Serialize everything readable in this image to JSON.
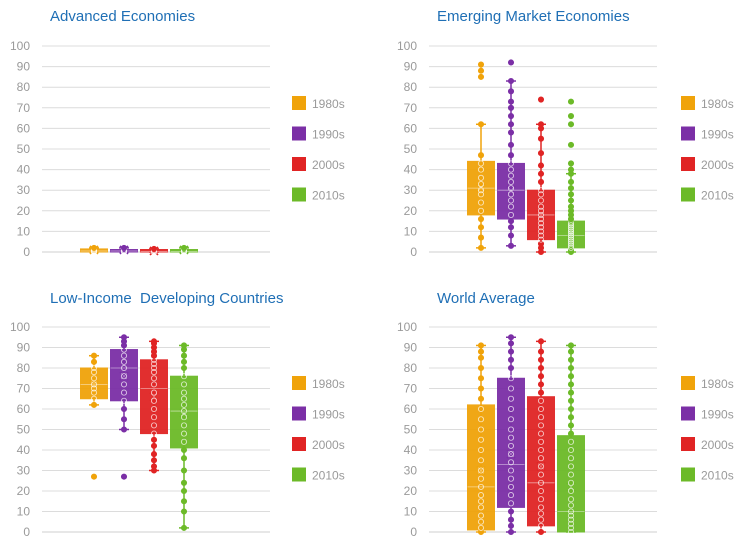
{
  "chart_data": [
    {
      "type": "box",
      "title": "Advanced Economies",
      "ylim": [
        0,
        100
      ],
      "yticks": [
        0,
        10,
        20,
        30,
        40,
        50,
        60,
        70,
        80,
        90,
        100
      ],
      "grid": true,
      "legend_position": "right",
      "series": [
        {
          "name": "1980s",
          "color": "#f0a30a",
          "q1": 0,
          "median": 0.5,
          "q3": 1.5,
          "mean": 1,
          "whisker_low": 0,
          "whisker_high": 2,
          "points": [
            0,
            0.5,
            1,
            1.5,
            2
          ]
        },
        {
          "name": "1990s",
          "color": "#7b2fa6",
          "q1": 0,
          "median": 0.5,
          "q3": 1,
          "mean": 1,
          "whisker_low": 0,
          "whisker_high": 2,
          "points": [
            0,
            0.5,
            1,
            2
          ]
        },
        {
          "name": "2000s",
          "color": "#e02424",
          "q1": 0,
          "median": 0.3,
          "q3": 1,
          "mean": 0.5,
          "whisker_low": 0,
          "whisker_high": 1.5,
          "points": [
            0,
            0.5,
            1,
            1.5
          ]
        },
        {
          "name": "2010s",
          "color": "#6cba28",
          "q1": 0,
          "median": 0.3,
          "q3": 1,
          "mean": 1,
          "whisker_low": 0,
          "whisker_high": 2,
          "points": [
            0,
            0.5,
            1,
            2
          ]
        }
      ]
    },
    {
      "type": "box",
      "title": "Emerging Market Economies",
      "ylim": [
        0,
        100
      ],
      "yticks": [
        0,
        10,
        20,
        30,
        40,
        50,
        60,
        70,
        80,
        90,
        100
      ],
      "grid": true,
      "legend_position": "right",
      "series": [
        {
          "name": "1980s",
          "color": "#f0a30a",
          "q1": 18,
          "median": 31,
          "q3": 44,
          "mean": 31,
          "whisker_low": 2,
          "whisker_high": 62,
          "points": [
            2,
            7,
            12,
            16,
            20,
            24,
            28,
            30,
            33,
            36,
            40,
            43,
            47,
            62,
            85,
            88,
            91
          ]
        },
        {
          "name": "1990s",
          "color": "#7b2fa6",
          "q1": 16,
          "median": 30,
          "q3": 43,
          "mean": 30,
          "whisker_low": 3,
          "whisker_high": 83,
          "points": [
            3,
            8,
            12,
            15,
            18,
            22,
            25,
            28,
            31,
            34,
            37,
            40,
            43,
            47,
            52,
            58,
            62,
            66,
            70,
            73,
            78,
            83,
            92
          ]
        },
        {
          "name": "2000s",
          "color": "#e02424",
          "q1": 6,
          "median": 18,
          "q3": 30,
          "mean": 18,
          "whisker_low": 0,
          "whisker_high": 62,
          "points": [
            0,
            2,
            4,
            6,
            8,
            10,
            12,
            14,
            16,
            18,
            20,
            22,
            25,
            28,
            30,
            34,
            38,
            42,
            48,
            55,
            60,
            62,
            74
          ]
        },
        {
          "name": "2010s",
          "color": "#6cba28",
          "q1": 2,
          "median": 8,
          "q3": 15,
          "mean": 9,
          "whisker_low": 0,
          "whisker_high": 38,
          "points": [
            0,
            1,
            2,
            3,
            4,
            5,
            6,
            7,
            8,
            9,
            10,
            11,
            12,
            13,
            14,
            16,
            18,
            20,
            22,
            25,
            28,
            31,
            34,
            38,
            40,
            43,
            52,
            62,
            66,
            73
          ]
        }
      ]
    },
    {
      "type": "box",
      "title": "Low-Income  Developing Countries",
      "ylim": [
        0,
        100
      ],
      "yticks": [
        0,
        10,
        20,
        30,
        40,
        50,
        60,
        70,
        80,
        90,
        100
      ],
      "grid": true,
      "legend_position": "right",
      "series": [
        {
          "name": "1980s",
          "color": "#f0a30a",
          "q1": 65,
          "median": 72,
          "q3": 80,
          "mean": 72,
          "whisker_low": 62,
          "whisker_high": 86,
          "points": [
            27,
            62,
            65,
            68,
            70,
            72,
            75,
            78,
            80,
            83,
            86
          ]
        },
        {
          "name": "1990s",
          "color": "#7b2fa6",
          "q1": 64,
          "median": 80,
          "q3": 89,
          "mean": 76,
          "whisker_low": 50,
          "whisker_high": 95,
          "points": [
            27,
            50,
            55,
            60,
            64,
            68,
            72,
            76,
            80,
            83,
            86,
            89,
            91,
            93,
            95
          ]
        },
        {
          "name": "2000s",
          "color": "#e02424",
          "q1": 48,
          "median": 70,
          "q3": 84,
          "mean": 66,
          "whisker_low": 30,
          "whisker_high": 93,
          "points": [
            30,
            32,
            35,
            38,
            42,
            45,
            48,
            52,
            56,
            60,
            64,
            68,
            72,
            75,
            78,
            80,
            82,
            84,
            86,
            88,
            90,
            92,
            93
          ]
        },
        {
          "name": "2010s",
          "color": "#6cba28",
          "q1": 41,
          "median": 59,
          "q3": 76,
          "mean": 58,
          "whisker_low": 2,
          "whisker_high": 91,
          "points": [
            2,
            10,
            15,
            20,
            24,
            30,
            36,
            40,
            44,
            48,
            52,
            56,
            59,
            62,
            65,
            68,
            72,
            76,
            80,
            83,
            86,
            89,
            91
          ]
        }
      ]
    },
    {
      "type": "box",
      "title": "World Average",
      "ylim": [
        0,
        100
      ],
      "yticks": [
        0,
        10,
        20,
        30,
        40,
        50,
        60,
        70,
        80,
        90,
        100
      ],
      "grid": true,
      "legend_position": "right",
      "series": [
        {
          "name": "1980s",
          "color": "#f0a30a",
          "q1": 1,
          "median": 22,
          "q3": 62,
          "mean": 30,
          "whisker_low": 0,
          "whisker_high": 91,
          "points": [
            0,
            2,
            5,
            8,
            12,
            15,
            18,
            22,
            26,
            30,
            35,
            40,
            45,
            50,
            55,
            60,
            65,
            70,
            75,
            80,
            85,
            88,
            91
          ]
        },
        {
          "name": "1990s",
          "color": "#7b2fa6",
          "q1": 12,
          "median": 33,
          "q3": 75,
          "mean": 38,
          "whisker_low": 0,
          "whisker_high": 95,
          "points": [
            0,
            3,
            6,
            10,
            14,
            18,
            22,
            26,
            30,
            34,
            38,
            42,
            46,
            50,
            55,
            60,
            65,
            70,
            75,
            80,
            84,
            88,
            92,
            95
          ]
        },
        {
          "name": "2000s",
          "color": "#e02424",
          "q1": 3,
          "median": 24,
          "q3": 66,
          "mean": 32,
          "whisker_low": 0,
          "whisker_high": 93,
          "points": [
            0,
            3,
            6,
            9,
            12,
            16,
            20,
            24,
            28,
            32,
            36,
            40,
            44,
            48,
            52,
            56,
            60,
            64,
            68,
            72,
            76,
            80,
            84,
            88,
            93
          ]
        },
        {
          "name": "2010s",
          "color": "#6cba28",
          "q1": 0,
          "median": 10,
          "q3": 47,
          "mean": 22,
          "whisker_low": 0,
          "whisker_high": 91,
          "points": [
            0,
            2,
            4,
            6,
            8,
            10,
            13,
            16,
            20,
            24,
            28,
            32,
            36,
            40,
            44,
            48,
            52,
            56,
            60,
            64,
            68,
            72,
            76,
            80,
            84,
            88,
            91
          ]
        }
      ]
    }
  ]
}
